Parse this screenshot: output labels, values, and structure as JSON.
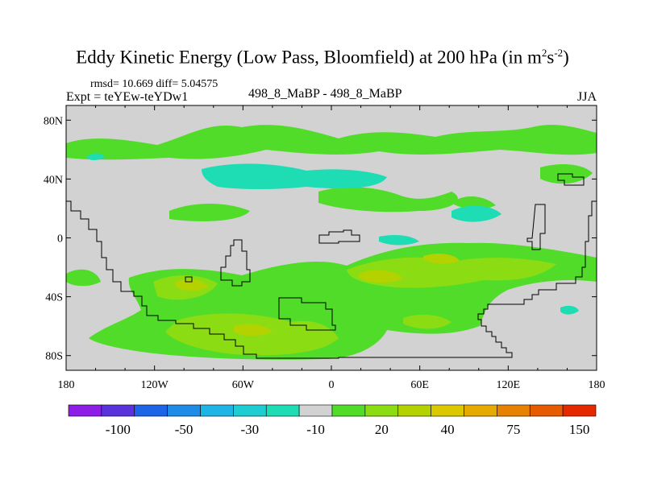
{
  "title": {
    "main": "Eddy Kinetic Energy (Low Pass, Bloomfield) at 200 hPa (in m",
    "sup1": "2",
    "mid": "s",
    "sup2": "-2",
    "end": ")"
  },
  "stats": "rmsd= 10.669 diff= 5.04575",
  "expt": "Expt = teYEw-teYDw1",
  "center_label": "498_8_MaBP - 498_8_MaBP",
  "season": "JJA",
  "lat_labels": [
    "80N",
    "40N",
    "0",
    "40S",
    "80S"
  ],
  "lon_labels": [
    "180",
    "120W",
    "60W",
    "0",
    "60E",
    "120E",
    "180"
  ],
  "colorbar": {
    "colors": [
      "#8c1ee6",
      "#5a32dc",
      "#1e64e6",
      "#1e8ce6",
      "#1eb4e6",
      "#1ecdd2",
      "#1edcb4",
      "#d2d2d2",
      "#50dc28",
      "#8cdc14",
      "#b4d200",
      "#dcc800",
      "#e6aa00",
      "#e68200",
      "#e65a00",
      "#e62800"
    ],
    "labels": [
      "-100",
      "-50",
      "-30",
      "-10",
      "20",
      "40",
      "75",
      "150"
    ],
    "label_bounds": [
      2,
      4,
      6,
      8,
      10,
      12,
      14,
      16
    ]
  },
  "colors": {
    "background": "#d2d2d2",
    "green": "#50dc28",
    "lime": "#8cdc14",
    "yellow": "#b4d200",
    "cyan": "#1edcb4",
    "cyan_dark": "#1ecdd2"
  }
}
